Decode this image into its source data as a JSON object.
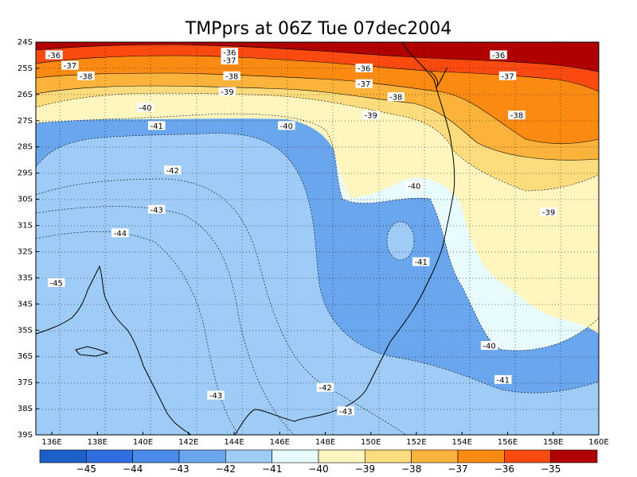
{
  "title": "TMPprs at 06Z Tue 07dec2004",
  "map": {
    "lon_range": [
      135.3,
      160
    ],
    "lat_range": [
      -39,
      -24
    ],
    "lon_ticks": [
      "136E",
      "138E",
      "140E",
      "142E",
      "144E",
      "146E",
      "148E",
      "150E",
      "152E",
      "154E",
      "156E",
      "158E",
      "160E"
    ],
    "lat_ticks": [
      "24S",
      "25S",
      "26S",
      "27S",
      "28S",
      "29S",
      "30S",
      "31S",
      "32S",
      "33S",
      "34S",
      "35S",
      "36S",
      "37S",
      "38S",
      "39S"
    ],
    "grid": "dotted",
    "coastline": "black line"
  },
  "chart_data": {
    "type": "heatmap",
    "title": "TMPprs at 06Z Tue 07dec2004",
    "contour_interval": 1,
    "contour_levels": [
      "-45",
      "-44",
      "-43",
      "-42",
      "-41",
      "-40",
      "-39",
      "-38",
      "-37",
      "-36",
      "-35"
    ],
    "contour_labels": [
      {
        "text": "-36",
        "lon": 136.1,
        "lat": -24.5
      },
      {
        "text": "-37",
        "lon": 136.8,
        "lat": -24.9
      },
      {
        "text": "-38",
        "lon": 137.5,
        "lat": -25.3
      },
      {
        "text": "-40",
        "lon": 140.1,
        "lat": -26.5
      },
      {
        "text": "-41",
        "lon": 140.6,
        "lat": -27.2
      },
      {
        "text": "-42",
        "lon": 141.3,
        "lat": -28.9
      },
      {
        "text": "-43",
        "lon": 140.6,
        "lat": -30.4
      },
      {
        "text": "-44",
        "lon": 139.0,
        "lat": -31.3
      },
      {
        "text": "-45",
        "lon": 136.2,
        "lat": -33.2
      },
      {
        "text": "-36",
        "lon": 143.8,
        "lat": -24.4
      },
      {
        "text": "-37",
        "lon": 143.8,
        "lat": -24.7
      },
      {
        "text": "-38",
        "lon": 143.9,
        "lat": -25.3
      },
      {
        "text": "-39",
        "lon": 143.7,
        "lat": -25.9
      },
      {
        "text": "-40",
        "lon": 146.3,
        "lat": -27.2
      },
      {
        "text": "-36",
        "lon": 149.7,
        "lat": -25.0
      },
      {
        "text": "-37",
        "lon": 149.7,
        "lat": -25.6
      },
      {
        "text": "-38",
        "lon": 151.1,
        "lat": -26.1
      },
      {
        "text": "-39",
        "lon": 150.0,
        "lat": -26.8
      },
      {
        "text": "-40",
        "lon": 151.9,
        "lat": -29.5
      },
      {
        "text": "-41",
        "lon": 152.2,
        "lat": -32.4
      },
      {
        "text": "-36",
        "lon": 155.6,
        "lat": -24.5
      },
      {
        "text": "-37",
        "lon": 156.0,
        "lat": -25.3
      },
      {
        "text": "-38",
        "lon": 156.4,
        "lat": -26.8
      },
      {
        "text": "-39",
        "lon": 157.8,
        "lat": -30.5
      },
      {
        "text": "-40",
        "lon": 155.2,
        "lat": -35.6
      },
      {
        "text": "-41",
        "lon": 155.8,
        "lat": -36.9
      },
      {
        "text": "-42",
        "lon": 148.0,
        "lat": -37.2
      },
      {
        "text": "-43",
        "lon": 143.2,
        "lat": -37.5
      },
      {
        "text": "-43",
        "lon": 148.9,
        "lat": -38.1
      }
    ]
  },
  "colorbar": {
    "labels": [
      "-45",
      "-44",
      "-43",
      "-42",
      "-41",
      "-40",
      "-39",
      "-38",
      "-37",
      "-36",
      "-35"
    ],
    "colors": [
      "#1c5fc8",
      "#2f6ee0",
      "#4a8ae8",
      "#6aa6ee",
      "#9fccf7",
      "#e8fbff",
      "#fff5bf",
      "#fddc7e",
      "#fbb33c",
      "#fb8a12",
      "#fb4a10",
      "#b00000"
    ]
  }
}
